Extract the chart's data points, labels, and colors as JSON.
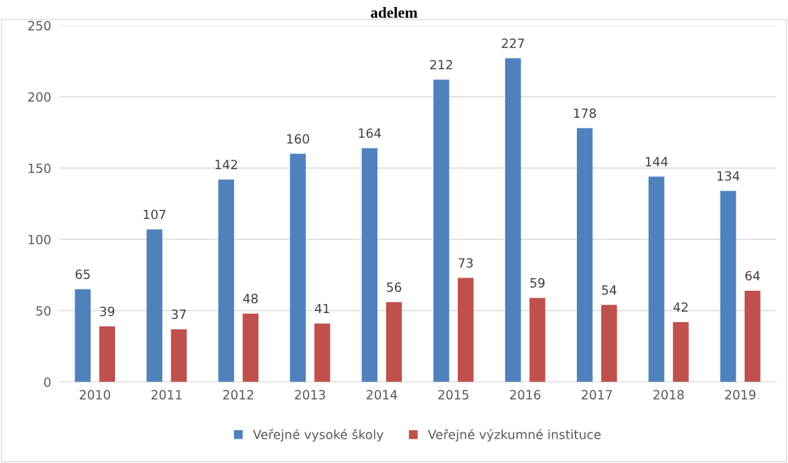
{
  "chart_data": {
    "type": "bar",
    "title": "adelem",
    "categories": [
      "2010",
      "2011",
      "2012",
      "2013",
      "2014",
      "2015",
      "2016",
      "2017",
      "2018",
      "2019"
    ],
    "series": [
      {
        "name": "Veřejné vysoké školy",
        "color": "#4f81bd",
        "values": [
          65,
          107,
          142,
          160,
          164,
          212,
          227,
          178,
          144,
          134
        ]
      },
      {
        "name": "Veřejné výzkumné instituce",
        "color": "#c0504d",
        "values": [
          39,
          37,
          48,
          41,
          56,
          73,
          59,
          54,
          42,
          64
        ]
      }
    ],
    "ylim": [
      0,
      250
    ],
    "yticks": [
      0,
      50,
      100,
      150,
      200,
      250
    ],
    "grid": "y",
    "legend": "bottom",
    "data_labels": true
  }
}
